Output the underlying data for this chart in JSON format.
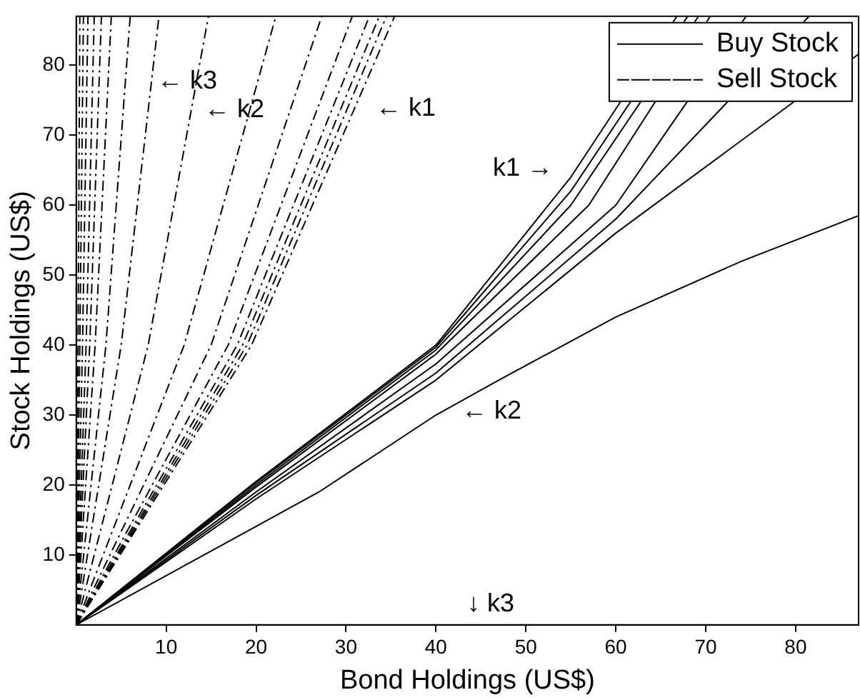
{
  "chart_data": {
    "type": "line",
    "xlabel": "Bond Holdings (US$)",
    "ylabel": "Stock Holdings (US$)",
    "xlim": [
      0,
      87
    ],
    "ylim": [
      0,
      87
    ],
    "xticks": [
      10,
      20,
      30,
      40,
      50,
      60,
      70,
      80
    ],
    "yticks": [
      10,
      20,
      30,
      40,
      50,
      60,
      70,
      80
    ],
    "grid": false,
    "legend": "top right",
    "marker": "none",
    "series": [
      {
        "name": "Buy Stock",
        "color": "#000000",
        "line_style": "solid",
        "x": [
          0,
          20,
          40,
          55,
          66.8
        ],
        "values": [
          0,
          20.5,
          40,
          64,
          87
        ]
      },
      {
        "color": "#000000",
        "line_style": "solid",
        "x": [
          0,
          20,
          40,
          55,
          68
        ],
        "values": [
          0,
          20.3,
          39.7,
          62,
          87
        ]
      },
      {
        "color": "#000000",
        "line_style": "solid",
        "x": [
          0,
          20,
          40,
          55,
          69.2
        ],
        "values": [
          0,
          20,
          39.3,
          60,
          87
        ]
      },
      {
        "color": "#000000",
        "line_style": "solid",
        "x": [
          0,
          20,
          40,
          57,
          70.5
        ],
        "values": [
          0,
          19.7,
          38.7,
          60,
          87
        ]
      },
      {
        "color": "#000000",
        "line_style": "solid",
        "x": [
          0,
          20,
          40,
          60,
          74.5
        ],
        "values": [
          0,
          19,
          37.3,
          60,
          87
        ]
      },
      {
        "color": "#000000",
        "line_style": "solid",
        "x": [
          0,
          20,
          40,
          60,
          81.5
        ],
        "values": [
          0,
          18.5,
          36,
          58,
          87
        ]
      },
      {
        "color": "#000000",
        "line_style": "solid",
        "x": [
          0,
          20,
          40,
          60,
          87
        ],
        "values": [
          0,
          18,
          35,
          56,
          81.6
        ]
      },
      {
        "color": "#000000",
        "line_style": "solid",
        "x": [
          0,
          27,
          40,
          47,
          60,
          74,
          87
        ],
        "values": [
          0,
          19,
          30,
          35,
          44,
          52,
          58.5
        ]
      },
      {
        "name": "Sell Stock",
        "color": "#000000",
        "line_style": "dashdot",
        "x": [
          0,
          0.2,
          0.4
        ],
        "values": [
          0,
          40,
          87
        ]
      },
      {
        "color": "#000000",
        "line_style": "dashdot",
        "x": [
          0,
          0.4,
          0.8
        ],
        "values": [
          0,
          40,
          87
        ]
      },
      {
        "color": "#000000",
        "line_style": "dashdot",
        "x": [
          0,
          0.7,
          1.3
        ],
        "values": [
          0,
          40,
          87
        ]
      },
      {
        "color": "#000000",
        "line_style": "dashdot",
        "x": [
          0,
          1.1,
          2
        ],
        "values": [
          0,
          40,
          87
        ]
      },
      {
        "color": "#000000",
        "line_style": "dashdot",
        "x": [
          0,
          1.5,
          2.8
        ],
        "values": [
          0,
          40,
          87
        ]
      },
      {
        "color": "#000000",
        "line_style": "dashdot",
        "x": [
          0,
          2.1,
          3.9
        ],
        "values": [
          0,
          40,
          87
        ]
      },
      {
        "color": "#000000",
        "line_style": "dashdot",
        "x": [
          0,
          3.3,
          6
        ],
        "values": [
          0,
          40,
          87
        ]
      },
      {
        "color": "#000000",
        "line_style": "dashdot",
        "x": [
          0,
          5,
          9.2
        ],
        "values": [
          0,
          40,
          87
        ]
      },
      {
        "color": "#000000",
        "line_style": "dashdot",
        "x": [
          0,
          8,
          14.7
        ],
        "values": [
          0,
          40,
          87
        ]
      },
      {
        "color": "#000000",
        "line_style": "dashdot",
        "x": [
          0,
          12,
          22.2
        ],
        "values": [
          0,
          40,
          87
        ]
      },
      {
        "color": "#000000",
        "line_style": "dashdot",
        "x": [
          0,
          15,
          27.3
        ],
        "values": [
          0,
          40,
          87
        ]
      },
      {
        "color": "#000000",
        "line_style": "dashdot",
        "x": [
          0,
          16.9,
          30.7
        ],
        "values": [
          0,
          40,
          87
        ]
      },
      {
        "color": "#000000",
        "line_style": "dashdot",
        "x": [
          0,
          17.9,
          32.6
        ],
        "values": [
          0,
          40,
          87
        ]
      },
      {
        "color": "#000000",
        "line_style": "dashdot",
        "x": [
          0,
          18.5,
          33.7
        ],
        "values": [
          0,
          40,
          87
        ]
      },
      {
        "color": "#000000",
        "line_style": "dashdot",
        "x": [
          0,
          19,
          34.5
        ],
        "values": [
          0,
          40,
          87
        ]
      },
      {
        "color": "#000000",
        "line_style": "dashdot",
        "x": [
          0,
          19.5,
          35.4
        ],
        "values": [
          0,
          40,
          87
        ]
      }
    ],
    "annotations": [
      "← k3",
      "← k2",
      "← k1",
      "k1 →",
      "← k2",
      "↓ k3"
    ]
  }
}
